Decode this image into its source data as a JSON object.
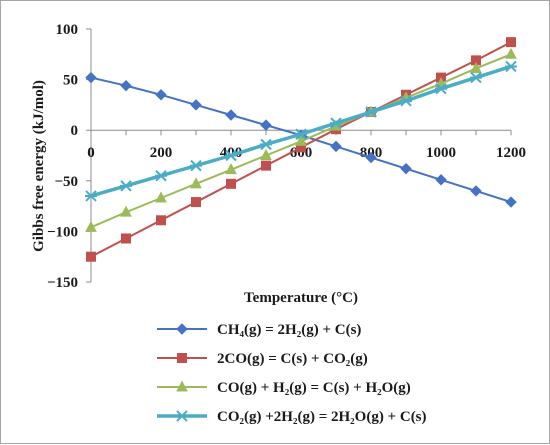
{
  "chart_data": {
    "type": "line",
    "title": "",
    "xlabel": "Temperature (°C)",
    "ylabel": "Gibbs free energy (kJ/mol)",
    "xlim": [
      0,
      1200
    ],
    "ylim": [
      -150,
      100
    ],
    "xticks": [
      0,
      200,
      400,
      600,
      800,
      1000,
      1200
    ],
    "yticks": [
      -150,
      -100,
      -50,
      0,
      50,
      100
    ],
    "x": [
      0,
      100,
      200,
      300,
      400,
      500,
      600,
      700,
      800,
      900,
      1000,
      1100,
      1200
    ],
    "grid": false,
    "legend_position": "bottom",
    "series": [
      {
        "name": "CH₄(g) = 2H₂(g) + C(s)",
        "color": "#4472c4",
        "marker": "diamond",
        "values": [
          52,
          44,
          35,
          25,
          15,
          5,
          -5,
          -16,
          -27,
          -38,
          -49,
          -60,
          -71
        ]
      },
      {
        "name": "2CO(g) = C(s) + CO₂(g)",
        "color": "#c0504d",
        "marker": "square",
        "values": [
          -125,
          -107,
          -89,
          -71,
          -53,
          -35,
          -17,
          1,
          18,
          35,
          52,
          69,
          87
        ]
      },
      {
        "name": "CO(g) + H₂(g) = C(s) + H₂O(g)",
        "color": "#9bbb59",
        "marker": "triangle",
        "values": [
          -96,
          -81,
          -67,
          -53,
          -39,
          -25,
          -11,
          4,
          18,
          32,
          46,
          61,
          75
        ]
      },
      {
        "name": "CO₂(g) +2H₂(g) = 2H₂O(g) + C(s)",
        "color": "#4bacc6",
        "marker": "star",
        "values": [
          -65,
          -55,
          -45,
          -35,
          -25,
          -14,
          -4,
          7,
          18,
          29,
          41,
          52,
          63
        ]
      }
    ]
  }
}
